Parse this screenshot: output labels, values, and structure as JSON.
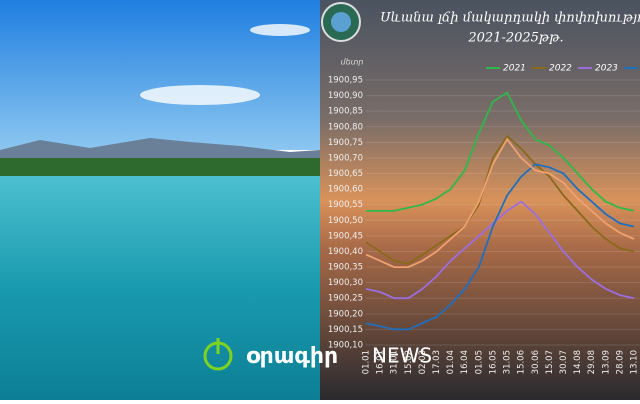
{
  "chart_data": {
    "type": "line",
    "title": "Սևանա լճի մակարդակի փոփոխությու",
    "subtitle": "2021-2025թթ.",
    "y_label": "մետր",
    "categories": [
      "01.01",
      "16.01",
      "31.01",
      "15.02",
      "02.03",
      "17.03",
      "01.04",
      "16.04",
      "01.05",
      "16.05",
      "31.05",
      "15.06",
      "30.06",
      "15.07",
      "30.07",
      "14.08",
      "29.08",
      "13.09",
      "28.09",
      "13.10"
    ],
    "series": [
      {
        "name": "2021",
        "color": "#2fb84a",
        "values": [
          1900.53,
          1900.53,
          1900.53,
          1900.54,
          1900.55,
          1900.57,
          1900.6,
          1900.66,
          1900.78,
          1900.88,
          1900.91,
          1900.82,
          1900.76,
          1900.74,
          1900.7,
          1900.65,
          1900.6,
          1900.56,
          1900.54,
          1900.53
        ]
      },
      {
        "name": "2022",
        "color": "#8a6a1a",
        "values": [
          1900.43,
          1900.4,
          1900.37,
          1900.36,
          1900.39,
          1900.42,
          1900.45,
          1900.48,
          1900.55,
          1900.7,
          1900.77,
          1900.73,
          1900.68,
          1900.64,
          1900.58,
          1900.53,
          1900.48,
          1900.44,
          1900.41,
          1900.4
        ]
      },
      {
        "name": "2023",
        "color": "#9b6ee0",
        "values": [
          1900.28,
          1900.27,
          1900.25,
          1900.25,
          1900.28,
          1900.32,
          1900.37,
          1900.41,
          1900.45,
          1900.49,
          1900.53,
          1900.56,
          1900.52,
          1900.46,
          1900.4,
          1900.35,
          1900.31,
          1900.28,
          1900.26,
          1900.25
        ]
      },
      {
        "color": "#1f6fc0",
        "values": [
          1900.17,
          1900.16,
          1900.15,
          1900.15,
          1900.17,
          1900.19,
          1900.23,
          1900.28,
          1900.35,
          1900.48,
          1900.58,
          1900.64,
          1900.68,
          1900.67,
          1900.65,
          1900.6,
          1900.56,
          1900.52,
          1900.49,
          1900.48
        ]
      },
      {
        "color": "#f0a070",
        "values": [
          1900.39,
          1900.37,
          1900.35,
          1900.35,
          1900.37,
          1900.4,
          1900.44,
          1900.48,
          1900.56,
          1900.68,
          1900.76,
          1900.7,
          1900.66,
          1900.65,
          1900.62,
          1900.57,
          1900.53,
          1900.49,
          1900.46,
          1900.44
        ]
      }
    ],
    "ylim": [
      1900.1,
      1900.95
    ],
    "yticks": [
      {
        "value": 1900.1,
        "label": "1900,10"
      },
      {
        "value": 1900.15,
        "label": "1900,15"
      },
      {
        "value": 1900.2,
        "label": "1900,20"
      },
      {
        "value": 1900.25,
        "label": "1900,25"
      },
      {
        "value": 1900.3,
        "label": "1900,30"
      },
      {
        "value": 1900.35,
        "label": "1900,35"
      },
      {
        "value": 1900.4,
        "label": "1900,40"
      },
      {
        "value": 1900.45,
        "label": "1900,45"
      },
      {
        "value": 1900.5,
        "label": "1900,50"
      },
      {
        "value": 1900.55,
        "label": "1900,55"
      },
      {
        "value": 1900.6,
        "label": "1900,60"
      },
      {
        "value": 1900.65,
        "label": "1900,65"
      },
      {
        "value": 1900.7,
        "label": "1900,70"
      },
      {
        "value": 1900.75,
        "label": "1900,75"
      },
      {
        "value": 1900.8,
        "label": "1900,80"
      },
      {
        "value": 1900.85,
        "label": "1900,85"
      },
      {
        "value": 1900.9,
        "label": "1900,90"
      },
      {
        "value": 1900.95,
        "label": "1900,95"
      }
    ]
  },
  "brand": {
    "name": "օրագիր",
    "suffix": "NEWS"
  }
}
